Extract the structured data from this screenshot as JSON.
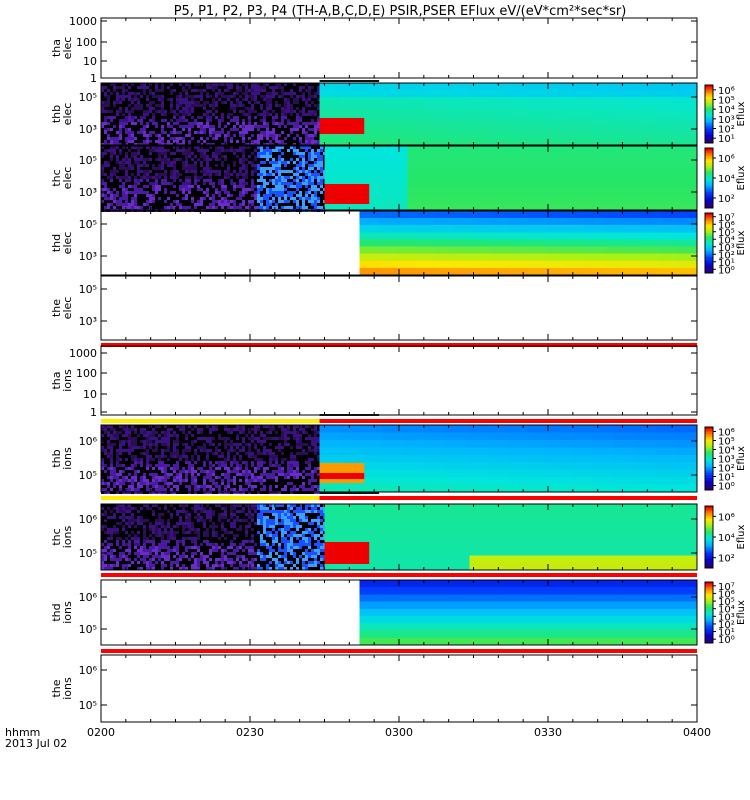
{
  "title": "P5, P1, P2, P3, P4 (TH-A,B,C,D,E) PSIR,PSER EFlux eV/(eV*cm²*sec*sr)",
  "colorbar_label": "Eflux",
  "time_axis": {
    "label_line1": "hhmm",
    "label_line2": "2013 Jul 02",
    "ticks": [
      "0200",
      "0230",
      "0300",
      "0330",
      "0400"
    ],
    "range_minutes": [
      0,
      120
    ]
  },
  "chart_data": {
    "type": "heatmap",
    "x_units": "minutes after 0200 UT, 2013 Jul 02",
    "panels": [
      {
        "id": "tha-elec",
        "ylabel": [
          "tha",
          "elec"
        ],
        "empty": true,
        "yticks": [
          "1",
          "10",
          "100",
          "1000"
        ],
        "bars": []
      },
      {
        "id": "thb-elec",
        "ylabel": [
          "thb",
          "elec"
        ],
        "yticks": [
          "10³",
          "10⁵"
        ],
        "burst_end": 44,
        "color_start": 44,
        "cb_ticks": [
          "10¹",
          "10²",
          "10³",
          "10⁴",
          "10⁵",
          "10⁶"
        ]
      },
      {
        "id": "thc-elec",
        "ylabel": [
          "thc",
          "elec"
        ],
        "yticks": [
          "10³",
          "10⁵"
        ],
        "burst_end": 45,
        "color_start": 45,
        "cb_ticks": [
          "10²",
          "10⁴",
          "10⁶"
        ]
      },
      {
        "id": "thd-elec",
        "ylabel": [
          "thd",
          "elec"
        ],
        "yticks": [
          "10³",
          "10⁵"
        ],
        "color_start": 52,
        "cb_ticks": [
          "10⁰",
          "10¹",
          "10²",
          "10³",
          "10⁴",
          "10⁵",
          "10⁶",
          "10⁷"
        ]
      },
      {
        "id": "the-elec",
        "ylabel": [
          "the",
          "elec"
        ],
        "empty": true,
        "yticks": [
          "10³",
          "10⁵"
        ]
      },
      {
        "id": "tha-ions",
        "ylabel": [
          "tha",
          "ions"
        ],
        "empty": true,
        "yticks": [
          "1",
          "10",
          "100",
          "1000"
        ]
      },
      {
        "id": "thb-ions",
        "ylabel": [
          "thb",
          "ions"
        ],
        "yticks": [
          "10⁵",
          "10⁶"
        ],
        "burst_end": 44,
        "color_start": 44,
        "cb_ticks": [
          "10⁰",
          "10¹",
          "10²",
          "10³",
          "10⁴",
          "10⁵",
          "10⁶"
        ]
      },
      {
        "id": "thc-ions",
        "ylabel": [
          "thc",
          "ions"
        ],
        "yticks": [
          "10⁵",
          "10⁶"
        ],
        "burst_end": 45,
        "color_start": 45,
        "cb_ticks": [
          "10²",
          "10⁴",
          "10⁶"
        ]
      },
      {
        "id": "thd-ions",
        "ylabel": [
          "thd",
          "ions"
        ],
        "yticks": [
          "10⁵",
          "10⁶"
        ],
        "color_start": 52,
        "cb_ticks": [
          "10⁰",
          "10¹",
          "10²",
          "10³",
          "10⁴",
          "10⁵",
          "10⁶",
          "10⁷"
        ]
      },
      {
        "id": "the-ions",
        "ylabel": [
          "the",
          "ions"
        ],
        "empty": true,
        "yticks": [
          "10⁵",
          "10⁶"
        ]
      }
    ]
  }
}
